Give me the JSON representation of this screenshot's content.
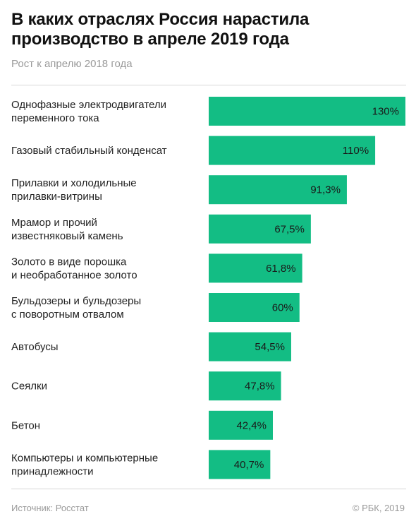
{
  "title": "В каких отраслях Россия нарастила\nпроизводство в апреле 2019 года",
  "subtitle": "Рост к апрелю 2018 года",
  "footer": {
    "source": "Источник: Росстат",
    "copyright": "© РБК, 2019"
  },
  "colors": {
    "bar": "#13bd84",
    "value_text": "#1a1a1a",
    "label_text": "#222222"
  },
  "chart_data": {
    "type": "bar",
    "orientation": "horizontal",
    "unit": "%",
    "xlim": [
      0,
      130
    ],
    "categories": [
      [
        "Однофазные электродвигатели",
        "переменного тока"
      ],
      [
        "Газовый стабильный конденсат"
      ],
      [
        "Прилавки и холодильные",
        "прилавки-витрины"
      ],
      [
        "Мрамор и прочий",
        "известняковый камень"
      ],
      [
        "Золото в виде порошка",
        "и необработанное золото"
      ],
      [
        "Бульдозеры и бульдозеры",
        "с поворотным отвалом"
      ],
      [
        "Автобусы"
      ],
      [
        "Сеялки"
      ],
      [
        "Бетон"
      ],
      [
        "Компьютеры и компьютерные",
        "принадлежности"
      ]
    ],
    "values": [
      130,
      110,
      91.3,
      67.5,
      61.8,
      60,
      54.5,
      47.8,
      42.4,
      40.7
    ],
    "value_labels": [
      "130%",
      "110%",
      "91,3%",
      "67,5%",
      "61,8%",
      "60%",
      "54,5%",
      "47,8%",
      "42,4%",
      "40,7%"
    ]
  }
}
